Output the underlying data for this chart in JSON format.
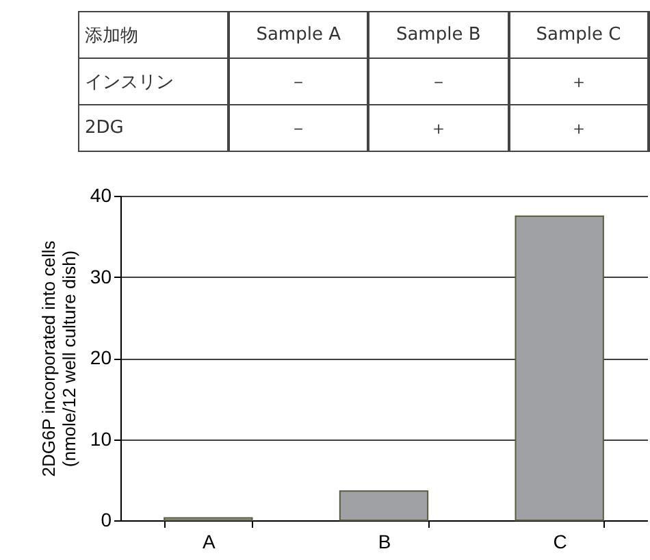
{
  "chart_data": [
    {
      "type": "other",
      "annotations": [
        "添加物",
        "Sample A",
        "Sample B",
        "Sample C",
        "インスリン",
        "－",
        "－",
        "＋",
        "2DG",
        "－",
        "＋",
        "＋"
      ]
    },
    {
      "type": "bar",
      "categories": [
        "A",
        "B",
        "C"
      ],
      "values": [
        0.3,
        3.6,
        37.5
      ],
      "color": "#a0a1a5",
      "ylabel": "2DG6P incorporated into cells\n(nmole/12 well culture dish)",
      "ylim": [
        0,
        40
      ],
      "yticks": [
        0,
        10,
        20,
        30,
        40
      ],
      "grid": "y"
    }
  ]
}
